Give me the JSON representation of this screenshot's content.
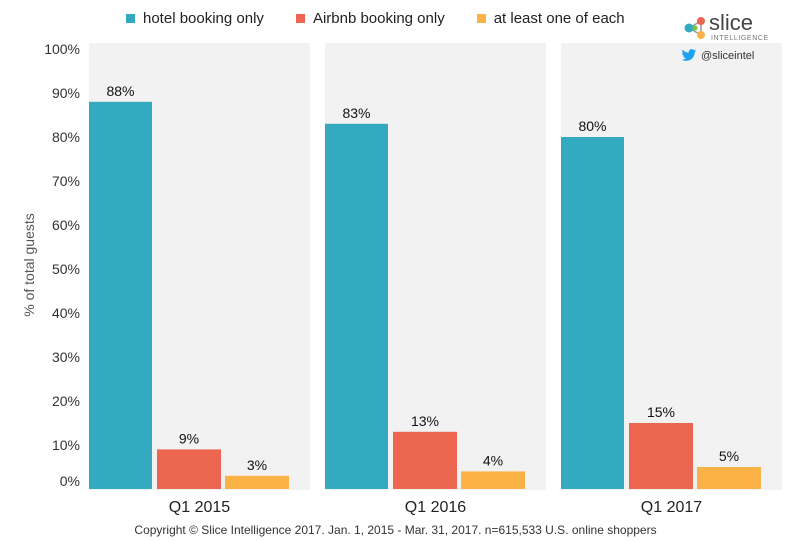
{
  "colors": {
    "hotel": "#33aabf",
    "airbnb": "#ec6650",
    "both": "#fbb348",
    "panel": "#f2f2f2",
    "axis_text": "#333333"
  },
  "legend": [
    {
      "label": "hotel booking only",
      "color": "#33aabf"
    },
    {
      "label": "Airbnb booking only",
      "color": "#ec6650"
    },
    {
      "label": "at least one of each",
      "color": "#fbb348"
    }
  ],
  "brand": {
    "name": "slice",
    "sub": "INTELLIGENCE",
    "handle": "@sliceintel"
  },
  "copyright": "Copyright © Slice Intelligence 2017. Jan. 1, 2015 - Mar. 31, 2017. n=615,533 U.S. online shoppers",
  "chart_data": {
    "type": "bar",
    "categories": [
      "Q1 2015",
      "Q1 2016",
      "Q1 2017"
    ],
    "series": [
      {
        "name": "hotel booking only",
        "values": [
          88,
          83,
          80
        ],
        "labels": [
          "88%",
          "83%",
          "80%"
        ]
      },
      {
        "name": "Airbnb booking only",
        "values": [
          9,
          13,
          15
        ],
        "labels": [
          "9%",
          "13%",
          "15%"
        ]
      },
      {
        "name": "at least one of each",
        "values": [
          3,
          4,
          5
        ],
        "labels": [
          "3%",
          "4%",
          "5%"
        ]
      }
    ],
    "ylabel": "% of total guests",
    "ylim": [
      0,
      100
    ],
    "yticks": [
      "0%",
      "10%",
      "20%",
      "30%",
      "40%",
      "50%",
      "60%",
      "70%",
      "80%",
      "90%",
      "100%"
    ],
    "legend_position": "top",
    "grid": false
  }
}
